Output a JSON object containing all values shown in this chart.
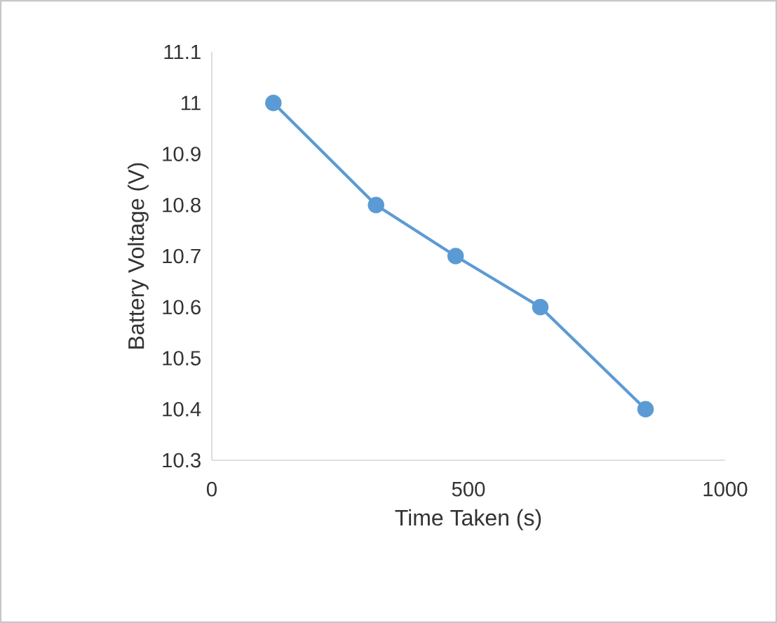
{
  "chart_data": {
    "type": "line",
    "xlabel": "Time Taken (s)",
    "ylabel": "Battery Voltage (V)",
    "x": [
      120,
      320,
      475,
      640,
      845
    ],
    "series": [
      {
        "color": "#5b9bd5",
        "values": [
          11,
          10.8,
          10.7,
          10.6,
          10.4
        ]
      }
    ],
    "xlim": [
      0,
      1000
    ],
    "ylim": [
      10.3,
      11.1
    ],
    "xticks": [
      0,
      500,
      1000
    ],
    "yticks": [
      10.3,
      10.4,
      10.5,
      10.6,
      10.7,
      10.8,
      10.9,
      11,
      11.1
    ],
    "marker": "circle",
    "line_style": "solid"
  }
}
